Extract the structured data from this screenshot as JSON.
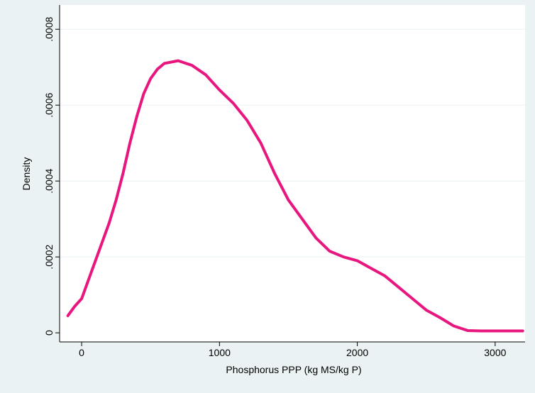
{
  "chart_data": {
    "type": "line",
    "xlabel": "Phosphorus PPP (kg MS/kg P)",
    "ylabel": "Density",
    "x": [
      -100,
      -50,
      0,
      50,
      100,
      150,
      200,
      250,
      300,
      350,
      400,
      450,
      500,
      550,
      600,
      700,
      800,
      900,
      1000,
      1100,
      1200,
      1300,
      1400,
      1500,
      1600,
      1700,
      1800,
      1900,
      2000,
      2100,
      2200,
      2300,
      2400,
      2500,
      2600,
      2700,
      2800,
      2900,
      3000,
      3200
    ],
    "values": [
      4.5e-05,
      7e-05,
      9e-05,
      0.00014,
      0.00019,
      0.00024,
      0.00029,
      0.00035,
      0.00042,
      0.0005,
      0.00057,
      0.00063,
      0.00067,
      0.000695,
      0.00071,
      0.000717,
      0.000705,
      0.00068,
      0.00064,
      0.000605,
      0.00056,
      0.0005,
      0.00042,
      0.00035,
      0.0003,
      0.00025,
      0.000215,
      0.0002,
      0.00019,
      0.00017,
      0.00015,
      0.00012,
      9e-05,
      6e-05,
      4e-05,
      1.8e-05,
      6e-06,
      5e-06,
      5e-06,
      5e-06
    ],
    "color": "#e8177f",
    "xlim": [
      -160,
      3217
    ],
    "ylim": [
      -2.4e-05,
      0.000864
    ],
    "xticks": [
      0,
      1000,
      2000,
      3000
    ],
    "yticks": [
      0,
      {
        "value": 0.0002,
        "label": ".0002"
      },
      {
        "value": 0.0004,
        "label": ".0004"
      },
      {
        "value": 0.0006,
        "label": ".0006"
      },
      {
        "value": 0.0008,
        "label": ".0008"
      }
    ],
    "grid": true
  }
}
